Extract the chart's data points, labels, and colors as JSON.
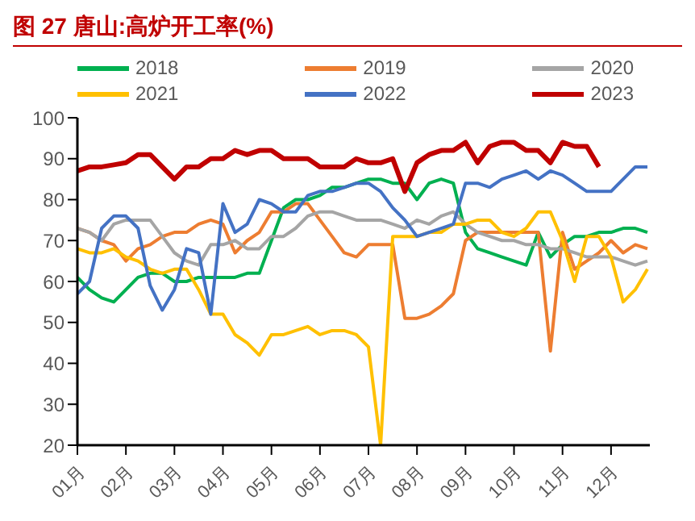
{
  "chart_data": {
    "type": "line",
    "title": "图 27 唐山:高炉开工率(%)",
    "x": [
      1,
      1.25,
      1.5,
      1.75,
      2,
      2.25,
      2.5,
      2.75,
      3,
      3.25,
      3.5,
      3.75,
      4,
      4.25,
      4.5,
      4.75,
      5,
      5.25,
      5.5,
      5.75,
      6,
      6.25,
      6.5,
      6.75,
      7,
      7.25,
      7.5,
      7.75,
      8,
      8.25,
      8.5,
      8.75,
      9,
      9.25,
      9.5,
      9.75,
      10,
      10.25,
      10.5,
      10.75,
      11,
      11.25,
      11.5,
      11.75,
      12,
      12.25,
      12.5,
      12.75
    ],
    "series": [
      {
        "name": "2018",
        "color": "#00b050",
        "values": [
          61,
          58,
          56,
          55,
          58,
          61,
          62,
          62,
          60,
          60,
          61,
          61,
          61,
          61,
          62,
          62,
          70,
          78,
          80,
          80,
          81,
          83,
          83,
          84,
          85,
          85,
          84,
          84,
          80,
          84,
          85,
          84,
          72,
          68,
          67,
          66,
          65,
          64,
          72,
          66,
          69,
          71,
          71,
          72,
          72,
          73,
          73,
          72
        ]
      },
      {
        "name": "2019",
        "color": "#ed7d31",
        "values": [
          73,
          72,
          70,
          69,
          65,
          68,
          69,
          71,
          72,
          72,
          74,
          75,
          74,
          67,
          70,
          72,
          77,
          77,
          79,
          79,
          75,
          71,
          67,
          66,
          69,
          69,
          69,
          51,
          51,
          52,
          54,
          57,
          70,
          72,
          72,
          72,
          72,
          72,
          72,
          43,
          72,
          63,
          65,
          67,
          70,
          67,
          69,
          68
        ]
      },
      {
        "name": "2020",
        "color": "#a5a5a5",
        "values": [
          73,
          72,
          70,
          74,
          75,
          75,
          75,
          71,
          67,
          65,
          64,
          69,
          69,
          70,
          68,
          68,
          71,
          71,
          73,
          76,
          77,
          77,
          76,
          75,
          75,
          75,
          74,
          73,
          75,
          74,
          76,
          77,
          74,
          72,
          71,
          70,
          70,
          69,
          69,
          68,
          68,
          67,
          66,
          66,
          66,
          65,
          64,
          65
        ]
      },
      {
        "name": "2021",
        "color": "#ffc000",
        "values": [
          68,
          67,
          67,
          68,
          66,
          65,
          63,
          62,
          63,
          63,
          58,
          52,
          52,
          47,
          45,
          42,
          47,
          47,
          48,
          49,
          47,
          48,
          48,
          47,
          44,
          20,
          71,
          71,
          71,
          72,
          72,
          74,
          74,
          75,
          75,
          72,
          71,
          73,
          77,
          77,
          70,
          60,
          71,
          71,
          66,
          55,
          58,
          63
        ]
      },
      {
        "name": "2022",
        "color": "#4472c4",
        "values": [
          57,
          60,
          73,
          76,
          76,
          73,
          59,
          53,
          58,
          68,
          67,
          52,
          79,
          72,
          74,
          80,
          79,
          77,
          77,
          81,
          82,
          82,
          83,
          84,
          84,
          82,
          78,
          75,
          71,
          72,
          73,
          74,
          84,
          84,
          83,
          85,
          86,
          87,
          85,
          87,
          86,
          84,
          82,
          82,
          82,
          85,
          88,
          88
        ]
      },
      {
        "name": "2023",
        "color": "#c00000",
        "values": [
          87,
          88,
          88,
          88.5,
          89,
          91,
          91,
          88,
          85,
          88,
          88,
          90,
          90,
          92,
          91,
          92,
          92,
          90,
          90,
          90,
          88,
          88,
          88,
          90,
          89,
          89,
          90,
          82,
          89,
          91,
          92,
          92,
          94,
          89,
          93,
          94,
          94,
          92,
          92,
          89,
          94,
          93,
          93,
          88,
          null,
          null,
          null,
          null
        ]
      }
    ],
    "xlim": [
      1,
      12.8
    ],
    "xticks": [
      {
        "value": 1,
        "label": "01月"
      },
      {
        "value": 2,
        "label": "02月"
      },
      {
        "value": 3,
        "label": "03月"
      },
      {
        "value": 4,
        "label": "04月"
      },
      {
        "value": 5,
        "label": "05月"
      },
      {
        "value": 6,
        "label": "06月"
      },
      {
        "value": 7,
        "label": "07月"
      },
      {
        "value": 8,
        "label": "08月"
      },
      {
        "value": 9,
        "label": "09月"
      },
      {
        "value": 10,
        "label": "10月"
      },
      {
        "value": 11,
        "label": "11月"
      },
      {
        "value": 12,
        "label": "12月"
      }
    ],
    "ylim": [
      20,
      100
    ],
    "yticks": [
      20,
      30,
      40,
      50,
      60,
      70,
      80,
      90,
      100
    ],
    "legend": "top",
    "marker": "none"
  }
}
